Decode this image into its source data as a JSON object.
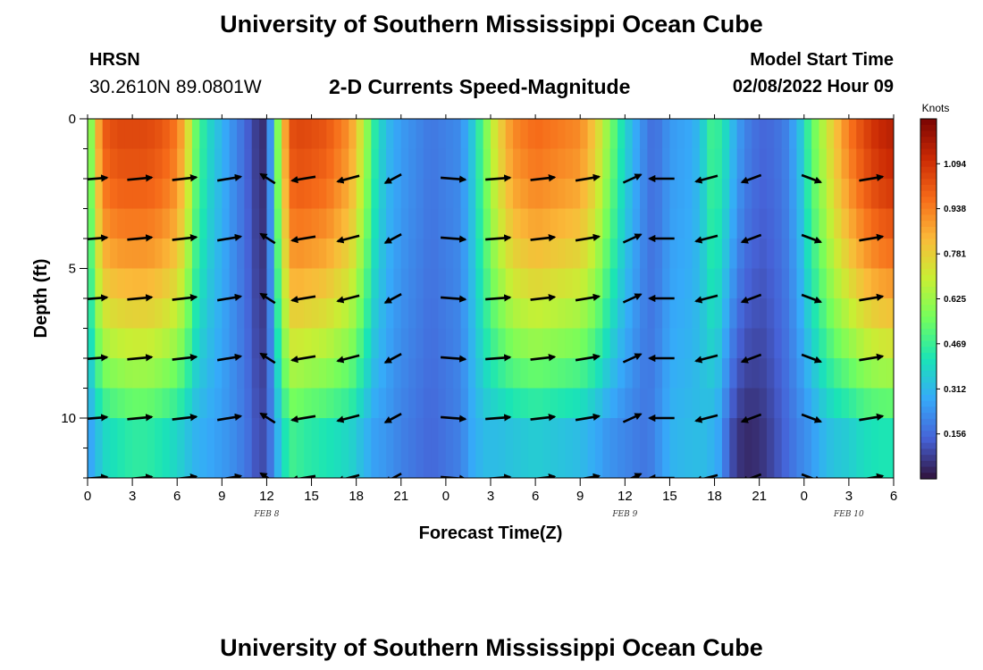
{
  "header": {
    "title": "University of Southern Mississippi Ocean Cube",
    "station": "HRSN",
    "coordinates": "30.2610N  89.0801W",
    "chart_title": "2-D Currents Speed-Magnitude",
    "model_start_label": "Model Start Time",
    "model_start_value": "02/08/2022 Hour 09"
  },
  "footer": {
    "title": "University of Southern Mississippi Ocean Cube"
  },
  "chart_data": {
    "type": "heatmap",
    "title": "2-D Currents Speed-Magnitude",
    "xlabel": "Forecast Time(Z)",
    "ylabel": "Depth (ft)",
    "x_tick_labels": [
      "0",
      "3",
      "6",
      "9",
      "12",
      "15",
      "18",
      "21",
      "0",
      "3",
      "6",
      "9",
      "12",
      "15",
      "18",
      "21",
      "0",
      "3",
      "6"
    ],
    "x_range_hours": [
      0,
      54
    ],
    "date_labels": [
      {
        "text": "FEB 8",
        "hour": 12
      },
      {
        "text": "FEB 9",
        "hour": 36
      },
      {
        "text": "FEB 10",
        "hour": 51
      }
    ],
    "y_tick_labels": [
      "0",
      "5",
      "10"
    ],
    "y_range": [
      0,
      12
    ],
    "y_inverted": true,
    "colorbar": {
      "title": "Knots",
      "ticks": [
        "1.094",
        "0.938",
        "0.781",
        "0.625",
        "0.469",
        "0.312",
        "0.156"
      ],
      "tick_values": [
        1.094,
        0.938,
        0.781,
        0.625,
        0.469,
        0.312,
        0.156
      ],
      "range": [
        0,
        1.25
      ],
      "colors": [
        "#30123b",
        "#4662d7",
        "#36aaf9",
        "#1ae4b6",
        "#72fe5e",
        "#c8ef34",
        "#faba39",
        "#f66b19",
        "#cb2a04",
        "#7a0403"
      ]
    },
    "speed_profile": {
      "hours": [
        0,
        0.5,
        1,
        2,
        3,
        4,
        5,
        6,
        6.6,
        7.2,
        8,
        9,
        9.8,
        10.6,
        11.2,
        11.8,
        12.4,
        12.9,
        13.4,
        13.8,
        14.5,
        16,
        17.6,
        18.4,
        19.2,
        20,
        21,
        23,
        25,
        25.8,
        26.6,
        27.4,
        28.5,
        30,
        33,
        34,
        34.8,
        35.6,
        36.4,
        37.2,
        38,
        38.4,
        39.2,
        40.6,
        41.2,
        41.8,
        42.4,
        43,
        43.6,
        44.4,
        45.2,
        46,
        46.8,
        47.6,
        48.4,
        49.2,
        50,
        51,
        52,
        53,
        54
      ],
      "surface": [
        0.45,
        0.75,
        1.0,
        1.05,
        1.05,
        1.05,
        1.02,
        0.95,
        0.8,
        0.55,
        0.4,
        0.3,
        0.22,
        0.15,
        0.08,
        0.05,
        0.3,
        0.7,
        0.95,
        1.05,
        1.05,
        1.02,
        0.9,
        0.7,
        0.45,
        0.32,
        0.25,
        0.18,
        0.22,
        0.35,
        0.55,
        0.75,
        0.92,
        0.98,
        0.92,
        0.8,
        0.62,
        0.45,
        0.32,
        0.22,
        0.15,
        0.2,
        0.25,
        0.28,
        0.36,
        0.48,
        0.45,
        0.35,
        0.25,
        0.18,
        0.15,
        0.16,
        0.2,
        0.3,
        0.5,
        0.65,
        0.8,
        0.95,
        1.05,
        1.12,
        1.15
      ],
      "bottom": [
        0.25,
        0.3,
        0.38,
        0.42,
        0.45,
        0.45,
        0.42,
        0.38,
        0.34,
        0.3,
        0.28,
        0.25,
        0.22,
        0.18,
        0.12,
        0.1,
        0.2,
        0.35,
        0.45,
        0.48,
        0.45,
        0.42,
        0.38,
        0.32,
        0.26,
        0.24,
        0.2,
        0.15,
        0.2,
        0.28,
        0.32,
        0.32,
        0.34,
        0.36,
        0.32,
        0.28,
        0.24,
        0.22,
        0.2,
        0.18,
        0.2,
        0.25,
        0.3,
        0.32,
        0.32,
        0.3,
        0.26,
        0.12,
        0.06,
        0.04,
        0.06,
        0.1,
        0.15,
        0.2,
        0.24,
        0.3,
        0.34,
        0.36,
        0.4,
        0.42,
        0.42
      ],
      "bottom_depth_ft": 10.5
    },
    "current_vectors": {
      "depths_ft": [
        2,
        4,
        6,
        8,
        10,
        12
      ],
      "columns": [
        {
          "hour": 0,
          "dir_deg": 80
        },
        {
          "hour": 3,
          "dir_deg": 78
        },
        {
          "hour": 6,
          "dir_deg": 75
        },
        {
          "hour": 9,
          "dir_deg": 70
        },
        {
          "hour": 11.6,
          "dir_deg": -35
        },
        {
          "hour": 14,
          "dir_deg": 250
        },
        {
          "hour": 17,
          "dir_deg": 240
        },
        {
          "hour": 20,
          "dir_deg": 220
        },
        {
          "hour": 24,
          "dir_deg": 100
        },
        {
          "hour": 27,
          "dir_deg": 80
        },
        {
          "hour": 30,
          "dir_deg": 75
        },
        {
          "hour": 33,
          "dir_deg": 70
        },
        {
          "hour": 36,
          "dir_deg": 45
        },
        {
          "hour": 38,
          "dir_deg": 270
        },
        {
          "hour": 41,
          "dir_deg": 240
        },
        {
          "hour": 44,
          "dir_deg": 230
        },
        {
          "hour": 48,
          "dir_deg": 130
        },
        {
          "hour": 52,
          "dir_deg": 70
        }
      ]
    }
  }
}
